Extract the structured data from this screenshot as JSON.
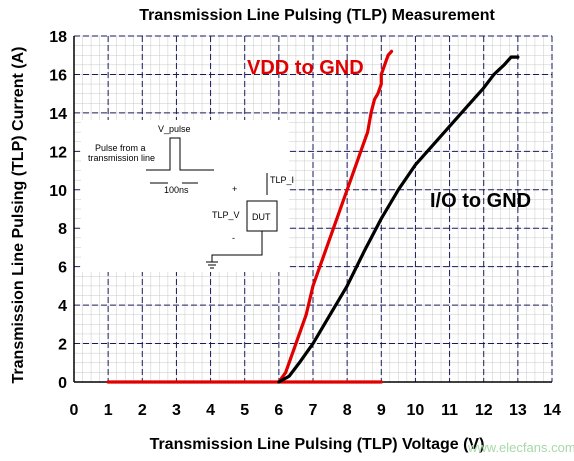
{
  "chart_data": {
    "type": "line",
    "title": "Transmission Line Pulsing (TLP) Measurement",
    "xlabel": "Transmission Line Pulsing (TLP) Voltage (V)",
    "ylabel": "Transmission Line Pulsing (TLP) Current (A)",
    "xlim": [
      0,
      14
    ],
    "ylim": [
      0,
      18
    ],
    "x_ticks": [
      "0",
      "1",
      "2",
      "3",
      "4",
      "5",
      "6",
      "7",
      "8",
      "9",
      "10",
      "11",
      "12",
      "13",
      "14"
    ],
    "y_ticks": [
      "0",
      "2",
      "4",
      "6",
      "8",
      "10",
      "12",
      "14",
      "16",
      "18"
    ],
    "grid": true,
    "series": [
      {
        "name": "VDD to GND",
        "color": "#e00000",
        "x": [
          1.0,
          6.0,
          9.0,
          6.0,
          6.2,
          6.3,
          6.5,
          6.8,
          7.0,
          7.3,
          7.6,
          7.9,
          8.1,
          8.3,
          8.5,
          8.6,
          8.7,
          8.8,
          8.9,
          9.0,
          9.0,
          9.1,
          9.2,
          9.3
        ],
        "y": [
          0.0,
          0.0,
          0.0,
          0.0,
          0.5,
          1.0,
          2.0,
          3.5,
          5.0,
          6.5,
          8.0,
          9.5,
          10.5,
          11.5,
          12.5,
          13.0,
          14.0,
          14.7,
          15.0,
          15.5,
          16.0,
          16.5,
          17.0,
          17.2
        ]
      },
      {
        "name": "I/O to GND",
        "color": "#000000",
        "x": [
          6.0,
          6.3,
          6.6,
          7.0,
          7.5,
          8.0,
          8.5,
          9.0,
          9.5,
          10.0,
          10.5,
          11.0,
          11.5,
          12.0,
          12.3,
          12.6,
          12.8,
          13.0
        ],
        "y": [
          0.0,
          0.3,
          1.0,
          2.0,
          3.5,
          5.0,
          6.8,
          8.5,
          10.0,
          11.3,
          12.3,
          13.3,
          14.3,
          15.3,
          16.0,
          16.5,
          16.9,
          16.9
        ]
      }
    ],
    "series_labels": [
      "VDD to GND",
      "I/O to GND"
    ]
  },
  "inset": {
    "pulse_label": "Pulse from a transmission line",
    "pulse_label_line1": "Pulse from a",
    "pulse_label_line2": "transmission line",
    "v_pulse": "V_pulse",
    "duration": "100ns",
    "plus": "+",
    "minus": "-",
    "tlp_v": "TLP_V",
    "tlp_i": "TLP_I",
    "dut": "DUT"
  },
  "watermark": "www.elecfans.com"
}
